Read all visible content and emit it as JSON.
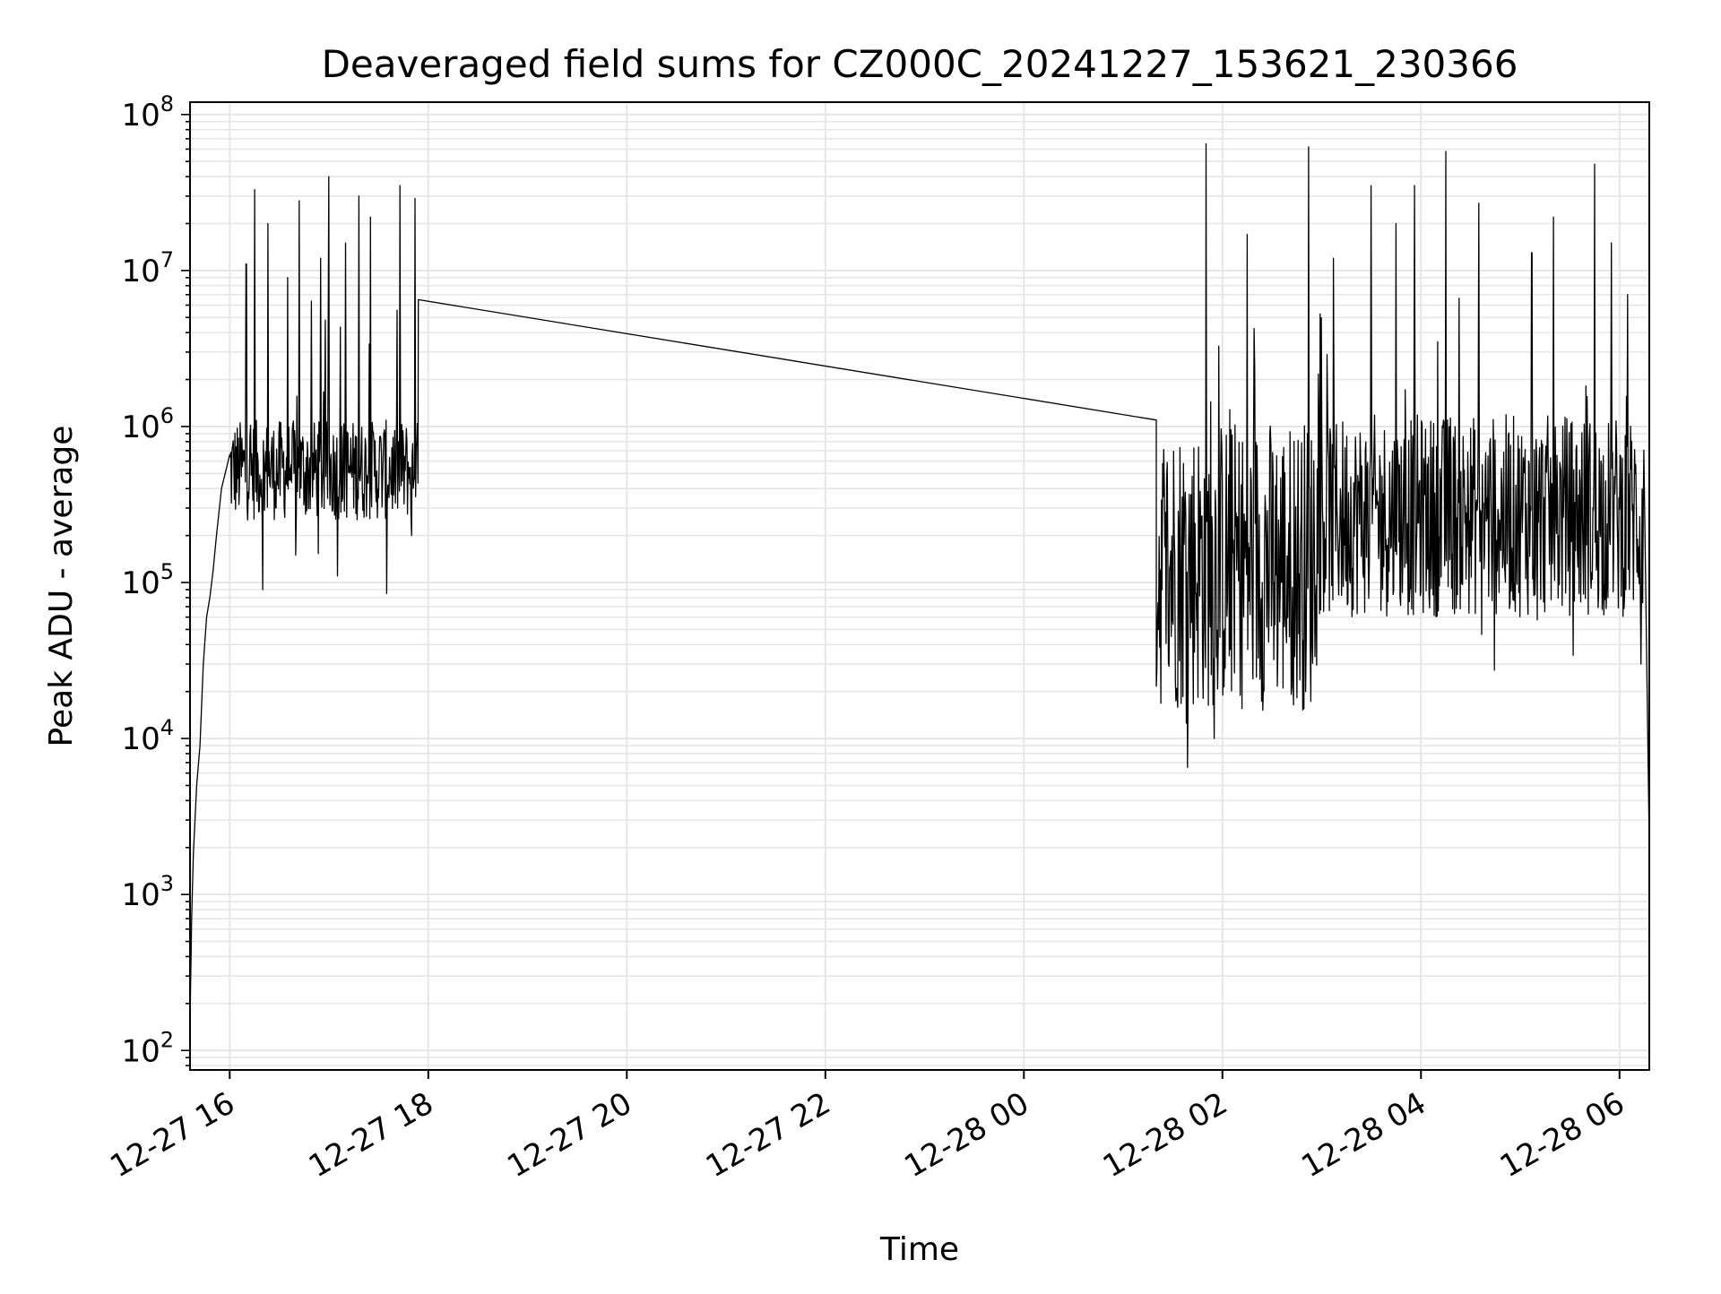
{
  "chart_data": {
    "type": "line",
    "title": "Deaveraged field sums for CZ000C_20241227_153621_230366",
    "xlabel": "Time",
    "ylabel": "Peak ADU - average",
    "yscale": "log",
    "ylim": [
      75,
      120000000
    ],
    "xlim": [
      "2024-12-27 15:36",
      "2024-12-28 06:18"
    ],
    "grid": true,
    "line_color": "#000000",
    "grid_color": "#e6e6e6",
    "x_ticks": [
      {
        "t": "2024-12-27 16:00",
        "label": "12-27 16"
      },
      {
        "t": "2024-12-27 18:00",
        "label": "12-27 18"
      },
      {
        "t": "2024-12-27 20:00",
        "label": "12-27 20"
      },
      {
        "t": "2024-12-27 22:00",
        "label": "12-27 22"
      },
      {
        "t": "2024-12-28 00:00",
        "label": "12-28 00"
      },
      {
        "t": "2024-12-28 02:00",
        "label": "12-28 02"
      },
      {
        "t": "2024-12-28 04:00",
        "label": "12-28 04"
      },
      {
        "t": "2024-12-28 06:00",
        "label": "12-28 06"
      }
    ],
    "y_ticks": [
      {
        "v": 100,
        "base": "10",
        "exp": "2"
      },
      {
        "v": 1000,
        "base": "10",
        "exp": "3"
      },
      {
        "v": 10000,
        "base": "10",
        "exp": "4"
      },
      {
        "v": 100000,
        "base": "10",
        "exp": "5"
      },
      {
        "v": 1000000,
        "base": "10",
        "exp": "6"
      },
      {
        "v": 10000000,
        "base": "10",
        "exp": "7"
      },
      {
        "v": 100000000,
        "base": "10",
        "exp": "8"
      }
    ],
    "series": [
      {
        "segments": [
          {
            "points": [
              [
                "2024-12-27 15:36",
                150
              ],
              [
                "2024-12-27 15:37",
                700
              ],
              [
                "2024-12-27 15:38",
                1800
              ],
              [
                "2024-12-27 15:40",
                5000
              ],
              [
                "2024-12-27 15:42",
                9000
              ],
              [
                "2024-12-27 15:44",
                30000
              ],
              [
                "2024-12-27 15:46",
                60000
              ],
              [
                "2024-12-27 15:48",
                80000
              ],
              [
                "2024-12-27 15:50",
                120000
              ],
              [
                "2024-12-27 15:52",
                200000
              ],
              [
                "2024-12-27 15:55",
                400000
              ],
              [
                "2024-12-27 16:00",
                700000
              ],
              [
                "2024-12-27 17:54",
                600000
              ]
            ],
            "band_low": 250000,
            "band_high": 1100000,
            "dips": [
              [
                "2024-12-27 16:20",
                90000
              ],
              [
                "2024-12-27 16:40",
                150000
              ],
              [
                "2024-12-27 17:05",
                110000
              ],
              [
                "2024-12-27 17:35",
                85000
              ],
              [
                "2024-12-27 17:50",
                200000
              ]
            ],
            "spikes": [
              [
                "2024-12-27 16:10",
                11000000
              ],
              [
                "2024-12-27 16:15",
                33000000
              ],
              [
                "2024-12-27 16:23",
                20000000
              ],
              [
                "2024-12-27 16:35",
                9000000
              ],
              [
                "2024-12-27 16:42",
                28000000
              ],
              [
                "2024-12-27 16:55",
                12000000
              ],
              [
                "2024-12-27 17:00",
                40000000
              ],
              [
                "2024-12-27 17:10",
                15000000
              ],
              [
                "2024-12-27 17:18",
                30000000
              ],
              [
                "2024-12-27 17:25",
                22000000
              ],
              [
                "2024-12-27 17:35",
                20000000
              ],
              [
                "2024-12-27 17:43",
                35000000
              ],
              [
                "2024-12-27 17:52",
                29000000
              ]
            ]
          },
          {
            "points": [
              [
                "2024-12-27 17:54",
                6500000
              ],
              [
                "2024-12-28 01:20",
                1100000
              ]
            ]
          },
          {
            "points": [
              [
                "2024-12-28 01:20",
                1100000
              ],
              [
                "2024-12-28 06:15",
                700000
              ],
              [
                "2024-12-28 06:18",
                2000
              ]
            ],
            "band_low": 15000,
            "band_high": 1150000,
            "band2_start": "2024-12-28 02:55",
            "band2_low": 60000,
            "band2_high": 1200000,
            "dips": [
              [
                "2024-12-28 01:55",
                10000
              ],
              [
                "2024-12-28 06:13",
                30000
              ],
              [
                "2024-12-28 06:17",
                5000
              ]
            ],
            "spikes": [
              [
                "2024-12-28 01:50",
                65000000
              ],
              [
                "2024-12-28 02:15",
                17000000
              ],
              [
                "2024-12-28 02:52",
                62000000
              ],
              [
                "2024-12-28 03:07",
                12000000
              ],
              [
                "2024-12-28 03:30",
                35000000
              ],
              [
                "2024-12-28 03:45",
                20000000
              ],
              [
                "2024-12-28 03:56",
                35000000
              ],
              [
                "2024-12-28 04:15",
                58000000
              ],
              [
                "2024-12-28 04:35",
                27000000
              ],
              [
                "2024-12-28 05:07",
                13000000
              ],
              [
                "2024-12-28 05:20",
                22000000
              ],
              [
                "2024-12-28 05:45",
                48000000
              ],
              [
                "2024-12-28 05:55",
                15000000
              ],
              [
                "2024-12-28 06:05",
                7000000
              ]
            ]
          }
        ]
      }
    ]
  }
}
